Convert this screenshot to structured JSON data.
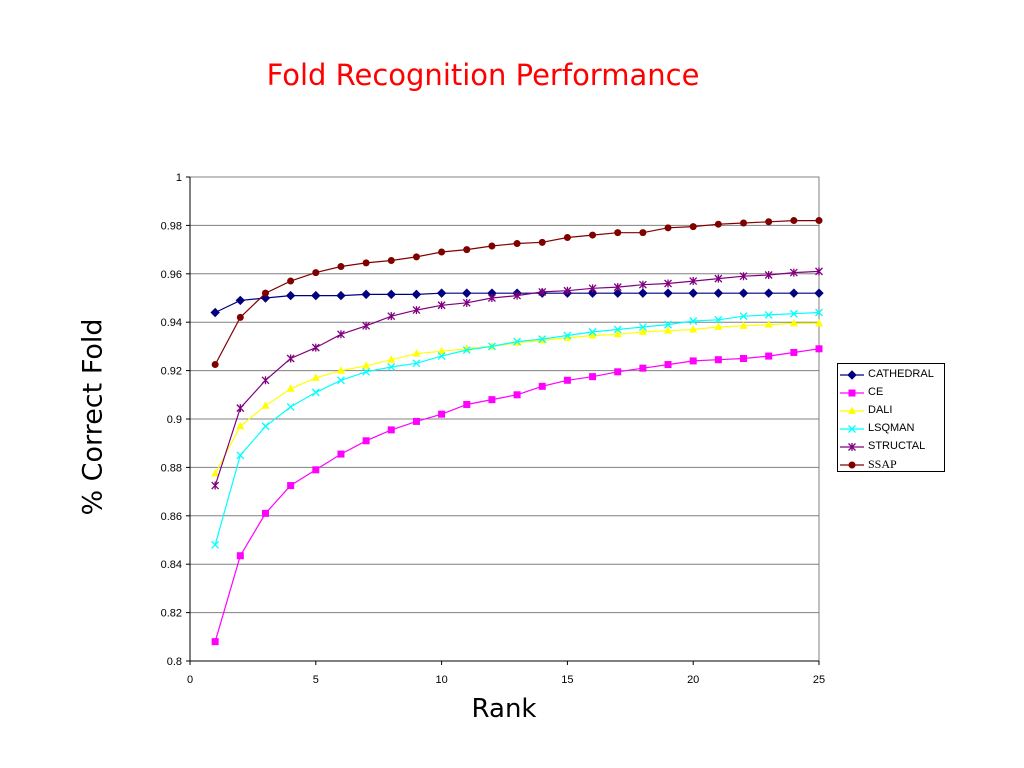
{
  "slide": {
    "title": "Fold Recognition Performance"
  },
  "chart_data": {
    "type": "line",
    "title": "Fold Recognition Performance",
    "xlabel": "Rank",
    "ylabel": "% Correct Fold",
    "xlim": [
      0,
      25
    ],
    "ylim": [
      0.8,
      1
    ],
    "xticks": [
      0,
      5,
      10,
      15,
      20,
      25
    ],
    "yticks": [
      0.8,
      0.82,
      0.84,
      0.86,
      0.88,
      0.9,
      0.92,
      0.94,
      0.96,
      0.98,
      1
    ],
    "ytick_labels": [
      "0.8",
      "0.82",
      "0.84",
      "0.86",
      "0.88",
      "0.9",
      "0.92",
      "0.94",
      "0.96",
      "0.98",
      "1"
    ],
    "grid": "horizontal",
    "legend_position": "right",
    "x": [
      1,
      2,
      3,
      4,
      5,
      6,
      7,
      8,
      9,
      10,
      11,
      12,
      13,
      14,
      15,
      16,
      17,
      18,
      19,
      20,
      21,
      22,
      23,
      24,
      25
    ],
    "series": [
      {
        "name": "CATHEDRAL",
        "color": "#000080",
        "marker": "diamond",
        "values": [
          0.944,
          0.949,
          0.95,
          0.951,
          0.951,
          0.951,
          0.9515,
          0.9515,
          0.9515,
          0.952,
          0.952,
          0.952,
          0.952,
          0.952,
          0.952,
          0.952,
          0.952,
          0.952,
          0.952,
          0.952,
          0.952,
          0.952,
          0.952,
          0.952,
          0.952
        ]
      },
      {
        "name": "CE",
        "color": "#ff00ff",
        "marker": "square",
        "values": [
          0.808,
          0.8435,
          0.861,
          0.8725,
          0.879,
          0.8855,
          0.891,
          0.8955,
          0.899,
          0.902,
          0.906,
          0.908,
          0.91,
          0.9135,
          0.916,
          0.9175,
          0.9195,
          0.921,
          0.9225,
          0.924,
          0.9245,
          0.925,
          0.926,
          0.9275,
          0.929
        ]
      },
      {
        "name": "DALI",
        "color": "#ffff00",
        "marker": "triangle",
        "values": [
          0.8775,
          0.897,
          0.9055,
          0.9125,
          0.917,
          0.92,
          0.922,
          0.9245,
          0.927,
          0.928,
          0.929,
          0.93,
          0.9315,
          0.9325,
          0.9335,
          0.9345,
          0.935,
          0.936,
          0.9365,
          0.937,
          0.938,
          0.9385,
          0.939,
          0.9395,
          0.9395
        ]
      },
      {
        "name": "LSQMAN",
        "color": "#00ffff",
        "marker": "x",
        "values": [
          0.848,
          0.885,
          0.897,
          0.905,
          0.911,
          0.916,
          0.9195,
          0.9215,
          0.923,
          0.926,
          0.9285,
          0.93,
          0.932,
          0.933,
          0.9345,
          0.936,
          0.937,
          0.938,
          0.939,
          0.9405,
          0.941,
          0.9425,
          0.943,
          0.9435,
          0.944
        ]
      },
      {
        "name": "STRUCTAL",
        "color": "#800080",
        "marker": "star",
        "values": [
          0.8725,
          0.9045,
          0.916,
          0.925,
          0.9295,
          0.935,
          0.9385,
          0.9425,
          0.945,
          0.947,
          0.948,
          0.95,
          0.951,
          0.9525,
          0.953,
          0.954,
          0.9545,
          0.9555,
          0.956,
          0.957,
          0.958,
          0.959,
          0.9595,
          0.9605,
          0.961
        ]
      },
      {
        "name": "SSAP",
        "color": "#800000",
        "marker": "circle",
        "values": [
          0.9225,
          0.942,
          0.952,
          0.957,
          0.9605,
          0.963,
          0.9645,
          0.9655,
          0.967,
          0.969,
          0.97,
          0.9715,
          0.9725,
          0.973,
          0.975,
          0.976,
          0.977,
          0.977,
          0.979,
          0.9795,
          0.9805,
          0.981,
          0.9815,
          0.982,
          0.982
        ]
      }
    ]
  }
}
